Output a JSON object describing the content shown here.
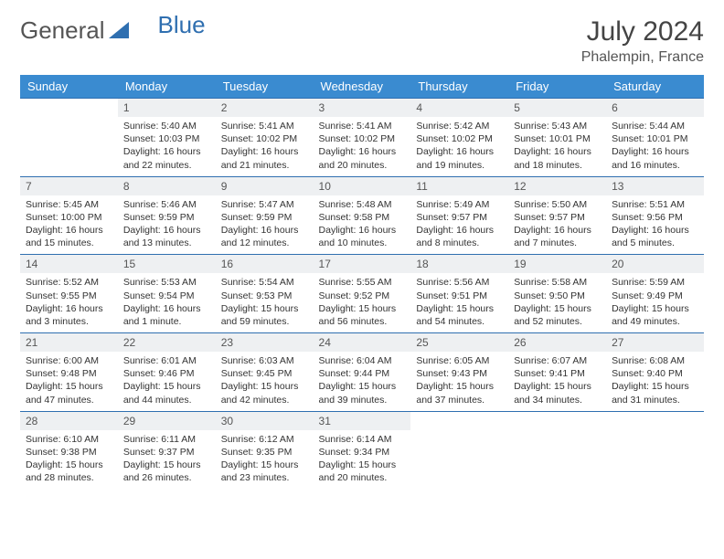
{
  "logo": {
    "part1": "General",
    "part2": "Blue"
  },
  "title": "July 2024",
  "location": "Phalempin, France",
  "colors": {
    "header_bg": "#3a8bd0",
    "header_text": "#ffffff",
    "rule": "#2f6fb0",
    "daynum_bg": "#eef0f2",
    "logo_accent": "#2f6fb0"
  },
  "weekdays": [
    "Sunday",
    "Monday",
    "Tuesday",
    "Wednesday",
    "Thursday",
    "Friday",
    "Saturday"
  ],
  "weeks": [
    [
      {
        "day": "",
        "sunrise": "",
        "sunset": "",
        "daylight": ""
      },
      {
        "day": "1",
        "sunrise": "Sunrise: 5:40 AM",
        "sunset": "Sunset: 10:03 PM",
        "daylight": "Daylight: 16 hours and 22 minutes."
      },
      {
        "day": "2",
        "sunrise": "Sunrise: 5:41 AM",
        "sunset": "Sunset: 10:02 PM",
        "daylight": "Daylight: 16 hours and 21 minutes."
      },
      {
        "day": "3",
        "sunrise": "Sunrise: 5:41 AM",
        "sunset": "Sunset: 10:02 PM",
        "daylight": "Daylight: 16 hours and 20 minutes."
      },
      {
        "day": "4",
        "sunrise": "Sunrise: 5:42 AM",
        "sunset": "Sunset: 10:02 PM",
        "daylight": "Daylight: 16 hours and 19 minutes."
      },
      {
        "day": "5",
        "sunrise": "Sunrise: 5:43 AM",
        "sunset": "Sunset: 10:01 PM",
        "daylight": "Daylight: 16 hours and 18 minutes."
      },
      {
        "day": "6",
        "sunrise": "Sunrise: 5:44 AM",
        "sunset": "Sunset: 10:01 PM",
        "daylight": "Daylight: 16 hours and 16 minutes."
      }
    ],
    [
      {
        "day": "7",
        "sunrise": "Sunrise: 5:45 AM",
        "sunset": "Sunset: 10:00 PM",
        "daylight": "Daylight: 16 hours and 15 minutes."
      },
      {
        "day": "8",
        "sunrise": "Sunrise: 5:46 AM",
        "sunset": "Sunset: 9:59 PM",
        "daylight": "Daylight: 16 hours and 13 minutes."
      },
      {
        "day": "9",
        "sunrise": "Sunrise: 5:47 AM",
        "sunset": "Sunset: 9:59 PM",
        "daylight": "Daylight: 16 hours and 12 minutes."
      },
      {
        "day": "10",
        "sunrise": "Sunrise: 5:48 AM",
        "sunset": "Sunset: 9:58 PM",
        "daylight": "Daylight: 16 hours and 10 minutes."
      },
      {
        "day": "11",
        "sunrise": "Sunrise: 5:49 AM",
        "sunset": "Sunset: 9:57 PM",
        "daylight": "Daylight: 16 hours and 8 minutes."
      },
      {
        "day": "12",
        "sunrise": "Sunrise: 5:50 AM",
        "sunset": "Sunset: 9:57 PM",
        "daylight": "Daylight: 16 hours and 7 minutes."
      },
      {
        "day": "13",
        "sunrise": "Sunrise: 5:51 AM",
        "sunset": "Sunset: 9:56 PM",
        "daylight": "Daylight: 16 hours and 5 minutes."
      }
    ],
    [
      {
        "day": "14",
        "sunrise": "Sunrise: 5:52 AM",
        "sunset": "Sunset: 9:55 PM",
        "daylight": "Daylight: 16 hours and 3 minutes."
      },
      {
        "day": "15",
        "sunrise": "Sunrise: 5:53 AM",
        "sunset": "Sunset: 9:54 PM",
        "daylight": "Daylight: 16 hours and 1 minute."
      },
      {
        "day": "16",
        "sunrise": "Sunrise: 5:54 AM",
        "sunset": "Sunset: 9:53 PM",
        "daylight": "Daylight: 15 hours and 59 minutes."
      },
      {
        "day": "17",
        "sunrise": "Sunrise: 5:55 AM",
        "sunset": "Sunset: 9:52 PM",
        "daylight": "Daylight: 15 hours and 56 minutes."
      },
      {
        "day": "18",
        "sunrise": "Sunrise: 5:56 AM",
        "sunset": "Sunset: 9:51 PM",
        "daylight": "Daylight: 15 hours and 54 minutes."
      },
      {
        "day": "19",
        "sunrise": "Sunrise: 5:58 AM",
        "sunset": "Sunset: 9:50 PM",
        "daylight": "Daylight: 15 hours and 52 minutes."
      },
      {
        "day": "20",
        "sunrise": "Sunrise: 5:59 AM",
        "sunset": "Sunset: 9:49 PM",
        "daylight": "Daylight: 15 hours and 49 minutes."
      }
    ],
    [
      {
        "day": "21",
        "sunrise": "Sunrise: 6:00 AM",
        "sunset": "Sunset: 9:48 PM",
        "daylight": "Daylight: 15 hours and 47 minutes."
      },
      {
        "day": "22",
        "sunrise": "Sunrise: 6:01 AM",
        "sunset": "Sunset: 9:46 PM",
        "daylight": "Daylight: 15 hours and 44 minutes."
      },
      {
        "day": "23",
        "sunrise": "Sunrise: 6:03 AM",
        "sunset": "Sunset: 9:45 PM",
        "daylight": "Daylight: 15 hours and 42 minutes."
      },
      {
        "day": "24",
        "sunrise": "Sunrise: 6:04 AM",
        "sunset": "Sunset: 9:44 PM",
        "daylight": "Daylight: 15 hours and 39 minutes."
      },
      {
        "day": "25",
        "sunrise": "Sunrise: 6:05 AM",
        "sunset": "Sunset: 9:43 PM",
        "daylight": "Daylight: 15 hours and 37 minutes."
      },
      {
        "day": "26",
        "sunrise": "Sunrise: 6:07 AM",
        "sunset": "Sunset: 9:41 PM",
        "daylight": "Daylight: 15 hours and 34 minutes."
      },
      {
        "day": "27",
        "sunrise": "Sunrise: 6:08 AM",
        "sunset": "Sunset: 9:40 PM",
        "daylight": "Daylight: 15 hours and 31 minutes."
      }
    ],
    [
      {
        "day": "28",
        "sunrise": "Sunrise: 6:10 AM",
        "sunset": "Sunset: 9:38 PM",
        "daylight": "Daylight: 15 hours and 28 minutes."
      },
      {
        "day": "29",
        "sunrise": "Sunrise: 6:11 AM",
        "sunset": "Sunset: 9:37 PM",
        "daylight": "Daylight: 15 hours and 26 minutes."
      },
      {
        "day": "30",
        "sunrise": "Sunrise: 6:12 AM",
        "sunset": "Sunset: 9:35 PM",
        "daylight": "Daylight: 15 hours and 23 minutes."
      },
      {
        "day": "31",
        "sunrise": "Sunrise: 6:14 AM",
        "sunset": "Sunset: 9:34 PM",
        "daylight": "Daylight: 15 hours and 20 minutes."
      },
      {
        "day": "",
        "sunrise": "",
        "sunset": "",
        "daylight": ""
      },
      {
        "day": "",
        "sunrise": "",
        "sunset": "",
        "daylight": ""
      },
      {
        "day": "",
        "sunrise": "",
        "sunset": "",
        "daylight": ""
      }
    ]
  ]
}
